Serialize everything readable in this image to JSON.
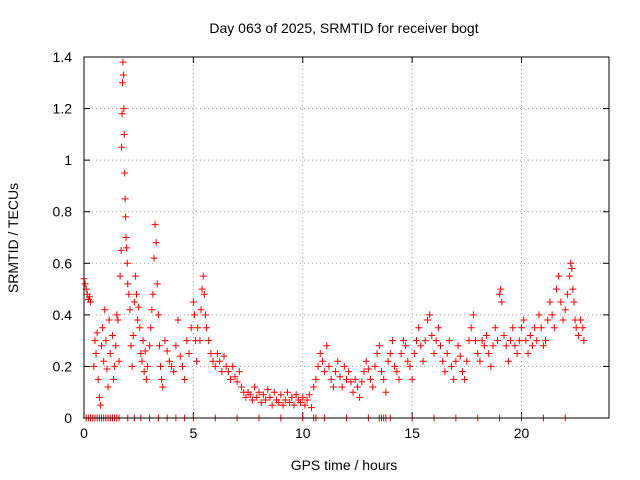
{
  "chart_data": {
    "type": "scatter",
    "title": "Day 063 of 2025, SRMTID for receiver bogt",
    "xlabel": "GPS time / hours",
    "ylabel": "SRMTID / TECUs",
    "xlim": [
      0,
      24
    ],
    "ylim": [
      0,
      1.4
    ],
    "xticks": [
      "0",
      "5",
      "10",
      "15",
      "20"
    ],
    "yticks": [
      "0",
      "0.2",
      "0.4",
      "0.6",
      "0.8",
      "1",
      "1.2",
      "1.4"
    ],
    "xtick_values": [
      0,
      5,
      10,
      15,
      20
    ],
    "ytick_values": [
      0,
      0.2,
      0.4,
      0.6,
      0.8,
      1.0,
      1.2,
      1.4
    ],
    "grid": true,
    "marker": "plus",
    "color": "#ff0000",
    "series": [
      {
        "name": "SRMTID",
        "points": [
          [
            0.0,
            0.54
          ],
          [
            0.05,
            0.52
          ],
          [
            0.1,
            0.5
          ],
          [
            0.15,
            0.48
          ],
          [
            0.2,
            0.46
          ],
          [
            0.25,
            0.47
          ],
          [
            0.3,
            0.45
          ],
          [
            0.45,
            0.2
          ],
          [
            0.5,
            0.3
          ],
          [
            0.55,
            0.25
          ],
          [
            0.6,
            0.33
          ],
          [
            0.65,
            0.15
          ],
          [
            0.7,
            0.08
          ],
          [
            0.75,
            0.05
          ],
          [
            0.8,
            0.28
          ],
          [
            0.85,
            0.35
          ],
          [
            0.9,
            0.22
          ],
          [
            0.95,
            0.42
          ],
          [
            1.0,
            0.3
          ],
          [
            1.05,
            0.19
          ],
          [
            1.1,
            0.12
          ],
          [
            1.15,
            0.38
          ],
          [
            1.2,
            0.25
          ],
          [
            1.3,
            0.32
          ],
          [
            1.35,
            0.15
          ],
          [
            1.4,
            0.2
          ],
          [
            1.45,
            0.28
          ],
          [
            1.5,
            0.4
          ],
          [
            1.55,
            0.38
          ],
          [
            1.6,
            0.22
          ],
          [
            1.65,
            0.55
          ],
          [
            1.7,
            0.65
          ],
          [
            1.72,
            1.05
          ],
          [
            1.74,
            1.18
          ],
          [
            1.76,
            1.3
          ],
          [
            1.78,
            1.38
          ],
          [
            1.8,
            1.33
          ],
          [
            1.82,
            1.2
          ],
          [
            1.84,
            1.1
          ],
          [
            1.86,
            0.95
          ],
          [
            1.88,
            0.85
          ],
          [
            1.9,
            0.78
          ],
          [
            1.92,
            0.7
          ],
          [
            1.95,
            0.66
          ],
          [
            1.98,
            0.6
          ],
          [
            2.0,
            0.52
          ],
          [
            2.05,
            0.48
          ],
          [
            2.1,
            0.42
          ],
          [
            2.15,
            0.28
          ],
          [
            2.2,
            0.2
          ],
          [
            2.25,
            0.32
          ],
          [
            2.3,
            0.45
          ],
          [
            2.35,
            0.55
          ],
          [
            2.4,
            0.48
          ],
          [
            2.45,
            0.38
          ],
          [
            2.5,
            0.43
          ],
          [
            2.55,
            0.35
          ],
          [
            2.6,
            0.25
          ],
          [
            2.65,
            0.22
          ],
          [
            2.7,
            0.3
          ],
          [
            2.75,
            0.18
          ],
          [
            2.8,
            0.26
          ],
          [
            2.85,
            0.15
          ],
          [
            2.9,
            0.2
          ],
          [
            3.0,
            0.28
          ],
          [
            3.05,
            0.35
          ],
          [
            3.1,
            0.42
          ],
          [
            3.15,
            0.48
          ],
          [
            3.2,
            0.62
          ],
          [
            3.25,
            0.75
          ],
          [
            3.3,
            0.68
          ],
          [
            3.35,
            0.52
          ],
          [
            3.4,
            0.4
          ],
          [
            3.45,
            0.28
          ],
          [
            3.5,
            0.2
          ],
          [
            3.55,
            0.15
          ],
          [
            3.6,
            0.12
          ],
          [
            3.7,
            0.3
          ],
          [
            3.8,
            0.26
          ],
          [
            3.9,
            0.22
          ],
          [
            4.0,
            0.2
          ],
          [
            4.1,
            0.18
          ],
          [
            4.2,
            0.28
          ],
          [
            4.3,
            0.38
          ],
          [
            4.4,
            0.24
          ],
          [
            4.5,
            0.2
          ],
          [
            4.6,
            0.15
          ],
          [
            4.7,
            0.3
          ],
          [
            4.8,
            0.25
          ],
          [
            4.9,
            0.35
          ],
          [
            5.0,
            0.45
          ],
          [
            5.05,
            0.4
          ],
          [
            5.1,
            0.3
          ],
          [
            5.15,
            0.22
          ],
          [
            5.2,
            0.35
          ],
          [
            5.3,
            0.3
          ],
          [
            5.35,
            0.42
          ],
          [
            5.4,
            0.5
          ],
          [
            5.45,
            0.55
          ],
          [
            5.5,
            0.48
          ],
          [
            5.55,
            0.4
          ],
          [
            5.6,
            0.35
          ],
          [
            5.7,
            0.3
          ],
          [
            5.8,
            0.25
          ],
          [
            5.9,
            0.22
          ],
          [
            6.0,
            0.2
          ],
          [
            6.1,
            0.25
          ],
          [
            6.2,
            0.22
          ],
          [
            6.3,
            0.18
          ],
          [
            6.4,
            0.24
          ],
          [
            6.5,
            0.2
          ],
          [
            6.6,
            0.18
          ],
          [
            6.7,
            0.15
          ],
          [
            6.8,
            0.2
          ],
          [
            6.9,
            0.16
          ],
          [
            7.0,
            0.14
          ],
          [
            7.1,
            0.18
          ],
          [
            7.2,
            0.12
          ],
          [
            7.3,
            0.1
          ],
          [
            7.4,
            0.08
          ],
          [
            7.5,
            0.1
          ],
          [
            7.6,
            0.09
          ],
          [
            7.7,
            0.07
          ],
          [
            7.8,
            0.12
          ],
          [
            7.9,
            0.08
          ],
          [
            8.0,
            0.1
          ],
          [
            8.1,
            0.06
          ],
          [
            8.2,
            0.09
          ],
          [
            8.3,
            0.07
          ],
          [
            8.4,
            0.11
          ],
          [
            8.5,
            0.08
          ],
          [
            8.6,
            0.05
          ],
          [
            8.7,
            0.1
          ],
          [
            8.8,
            0.07
          ],
          [
            8.9,
            0.06
          ],
          [
            9.0,
            0.09
          ],
          [
            9.1,
            0.05
          ],
          [
            9.2,
            0.07
          ],
          [
            9.3,
            0.1
          ],
          [
            9.4,
            0.06
          ],
          [
            9.5,
            0.08
          ],
          [
            9.6,
            0.05
          ],
          [
            9.7,
            0.09
          ],
          [
            9.8,
            0.07
          ],
          [
            9.9,
            0.06
          ],
          [
            10.0,
            0.08
          ],
          [
            10.1,
            0.05
          ],
          [
            10.2,
            0.07
          ],
          [
            10.3,
            0.09
          ],
          [
            10.4,
            0.04
          ],
          [
            10.5,
            0.12
          ],
          [
            10.6,
            0.15
          ],
          [
            10.7,
            0.2
          ],
          [
            10.8,
            0.25
          ],
          [
            10.9,
            0.22
          ],
          [
            11.0,
            0.18
          ],
          [
            11.1,
            0.28
          ],
          [
            11.2,
            0.2
          ],
          [
            11.3,
            0.15
          ],
          [
            11.4,
            0.12
          ],
          [
            11.5,
            0.18
          ],
          [
            11.6,
            0.22
          ],
          [
            11.7,
            0.16
          ],
          [
            11.8,
            0.12
          ],
          [
            11.9,
            0.2
          ],
          [
            12.0,
            0.15
          ],
          [
            12.1,
            0.18
          ],
          [
            12.2,
            0.14
          ],
          [
            12.3,
            0.1
          ],
          [
            12.4,
            0.15
          ],
          [
            12.5,
            0.12
          ],
          [
            12.6,
            0.08
          ],
          [
            12.7,
            0.14
          ],
          [
            12.8,
            0.18
          ],
          [
            12.9,
            0.22
          ],
          [
            13.0,
            0.19
          ],
          [
            13.1,
            0.15
          ],
          [
            13.2,
            0.12
          ],
          [
            13.3,
            0.2
          ],
          [
            13.4,
            0.25
          ],
          [
            13.5,
            0.28
          ],
          [
            13.6,
            0.18
          ],
          [
            13.7,
            0.15
          ],
          [
            13.8,
            0.1
          ],
          [
            13.9,
            0.22
          ],
          [
            14.0,
            0.25
          ],
          [
            14.1,
            0.3
          ],
          [
            14.2,
            0.2
          ],
          [
            14.3,
            0.18
          ],
          [
            14.4,
            0.15
          ],
          [
            14.5,
            0.25
          ],
          [
            14.6,
            0.3
          ],
          [
            14.7,
            0.28
          ],
          [
            14.8,
            0.22
          ],
          [
            14.9,
            0.2
          ],
          [
            15.0,
            0.15
          ],
          [
            15.1,
            0.25
          ],
          [
            15.2,
            0.3
          ],
          [
            15.3,
            0.35
          ],
          [
            15.4,
            0.28
          ],
          [
            15.5,
            0.22
          ],
          [
            15.6,
            0.3
          ],
          [
            15.7,
            0.38
          ],
          [
            15.8,
            0.4
          ],
          [
            15.9,
            0.32
          ],
          [
            16.0,
            0.25
          ],
          [
            16.1,
            0.3
          ],
          [
            16.2,
            0.35
          ],
          [
            16.3,
            0.28
          ],
          [
            16.4,
            0.22
          ],
          [
            16.5,
            0.18
          ],
          [
            16.6,
            0.25
          ],
          [
            16.7,
            0.3
          ],
          [
            16.8,
            0.2
          ],
          [
            16.9,
            0.15
          ],
          [
            17.0,
            0.22
          ],
          [
            17.1,
            0.28
          ],
          [
            17.2,
            0.24
          ],
          [
            17.3,
            0.18
          ],
          [
            17.4,
            0.15
          ],
          [
            17.5,
            0.22
          ],
          [
            17.6,
            0.3
          ],
          [
            17.7,
            0.35
          ],
          [
            17.8,
            0.4
          ],
          [
            17.9,
            0.3
          ],
          [
            18.0,
            0.25
          ],
          [
            18.1,
            0.22
          ],
          [
            18.2,
            0.3
          ],
          [
            18.3,
            0.28
          ],
          [
            18.4,
            0.32
          ],
          [
            18.5,
            0.25
          ],
          [
            18.6,
            0.2
          ],
          [
            18.7,
            0.28
          ],
          [
            18.8,
            0.35
          ],
          [
            18.9,
            0.3
          ],
          [
            19.0,
            0.48
          ],
          [
            19.05,
            0.5
          ],
          [
            19.1,
            0.45
          ],
          [
            19.2,
            0.32
          ],
          [
            19.3,
            0.28
          ],
          [
            19.4,
            0.22
          ],
          [
            19.5,
            0.3
          ],
          [
            19.6,
            0.35
          ],
          [
            19.7,
            0.28
          ],
          [
            19.8,
            0.25
          ],
          [
            19.9,
            0.3
          ],
          [
            20.0,
            0.35
          ],
          [
            20.1,
            0.38
          ],
          [
            20.2,
            0.3
          ],
          [
            20.3,
            0.25
          ],
          [
            20.4,
            0.32
          ],
          [
            20.5,
            0.28
          ],
          [
            20.6,
            0.35
          ],
          [
            20.7,
            0.3
          ],
          [
            20.8,
            0.4
          ],
          [
            20.9,
            0.35
          ],
          [
            21.0,
            0.28
          ],
          [
            21.1,
            0.3
          ],
          [
            21.2,
            0.38
          ],
          [
            21.3,
            0.45
          ],
          [
            21.4,
            0.4
          ],
          [
            21.5,
            0.35
          ],
          [
            21.6,
            0.5
          ],
          [
            21.7,
            0.55
          ],
          [
            21.8,
            0.45
          ],
          [
            21.9,
            0.38
          ],
          [
            22.0,
            0.42
          ],
          [
            22.1,
            0.48
          ],
          [
            22.2,
            0.55
          ],
          [
            22.25,
            0.6
          ],
          [
            22.3,
            0.58
          ],
          [
            22.35,
            0.5
          ],
          [
            22.4,
            0.45
          ],
          [
            22.45,
            0.38
          ],
          [
            22.5,
            0.35
          ],
          [
            22.6,
            0.32
          ],
          [
            22.7,
            0.38
          ],
          [
            22.8,
            0.35
          ],
          [
            22.85,
            0.3
          ]
        ],
        "zero_hours": [
          0.1,
          0.2,
          0.3,
          0.4,
          0.5,
          0.6,
          0.7,
          0.8,
          0.9,
          1.0,
          1.1,
          1.2,
          1.3,
          1.4,
          1.5,
          1.6,
          2.0,
          2.3,
          2.6,
          3.0,
          3.4,
          3.8,
          4.2,
          4.6,
          5.0,
          6.0,
          7.0,
          8.0,
          9.0,
          10.0,
          10.5,
          10.6,
          11.0,
          12.0,
          13.0,
          13.5,
          13.6,
          13.7,
          13.8,
          14.0,
          15.0,
          16.0,
          17.0,
          18.0,
          19.0,
          20.0,
          21.0,
          22.0
        ]
      }
    ]
  }
}
